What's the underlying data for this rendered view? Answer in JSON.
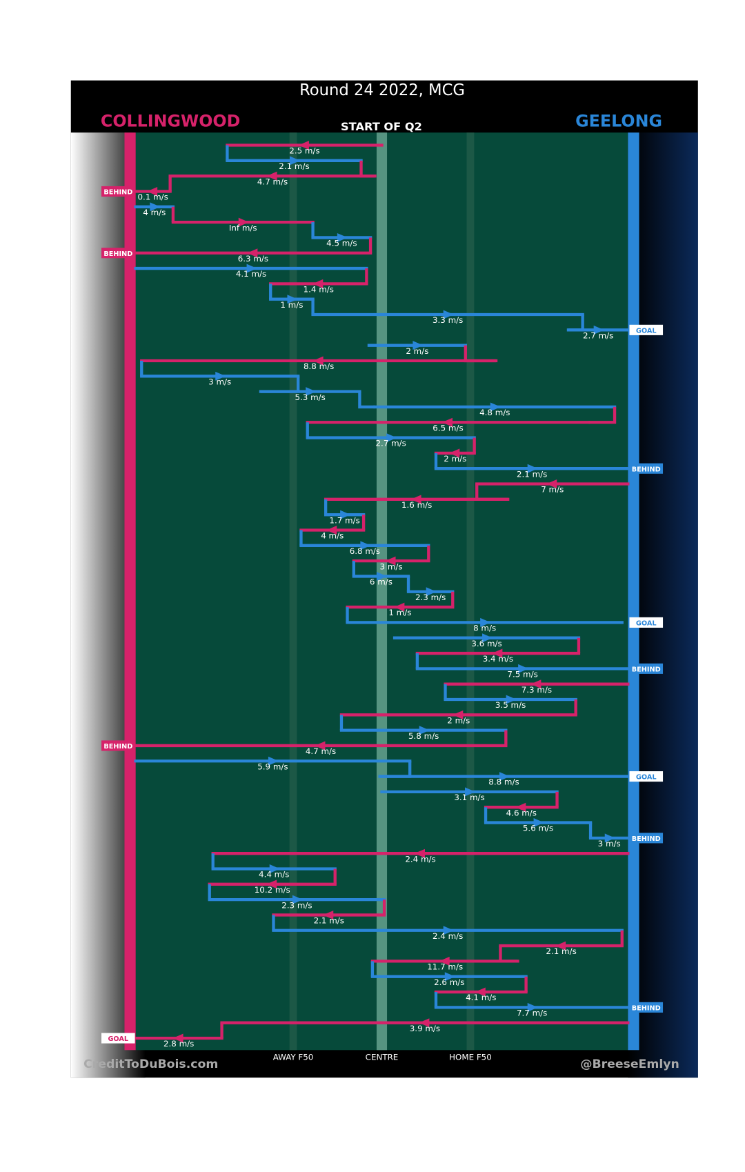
{
  "chart_data": {
    "type": "kick-chain",
    "title": "Round 24 2022, MCG",
    "subtitle": "START OF Q2",
    "credit_left": "CreditToDuBois.com",
    "credit_right": "@BreeseEmlyn",
    "teams": [
      {
        "name": "COLLINGWOOD",
        "color": "#d6226a"
      },
      {
        "name": "GEELONG",
        "color": "#2a86d8"
      }
    ],
    "xlim": [
      0,
      100
    ],
    "xticks": [
      {
        "value": 32,
        "label": "AWAY F50"
      },
      {
        "value": 50,
        "label": "CENTRE"
      },
      {
        "value": 68,
        "label": "HOME F50"
      }
    ],
    "kicks": [
      {
        "team": "COLLINGWOOD",
        "label": "2.5 m/s",
        "from": 50,
        "to": 18.6
      },
      {
        "team": "GEELONG",
        "label": "2.1 m/s",
        "from": 18.6,
        "to": 45.8
      },
      {
        "team": "COLLINGWOOD",
        "label": "4.7 m/s",
        "from": 48.6,
        "to": 7
      },
      {
        "team": "COLLINGWOOD",
        "label": "0.1 m/s",
        "from": 7,
        "to": 0,
        "result": "BEHIND"
      },
      {
        "team": "GEELONG",
        "label": "4 m/s",
        "from": 0,
        "to": 7.6
      },
      {
        "team": "COLLINGWOOD",
        "label": "Inf m/s",
        "from": 7.6,
        "to": 36
      },
      {
        "team": "GEELONG",
        "label": "4.5 m/s",
        "from": 36,
        "to": 47.7
      },
      {
        "team": "COLLINGWOOD",
        "label": "6.3 m/s",
        "from": 47.7,
        "to": 0,
        "result": "BEHIND"
      },
      {
        "team": "GEELONG",
        "label": "4.1 m/s",
        "from": 0,
        "to": 46.9
      },
      {
        "team": "COLLINGWOOD",
        "label": "1.4 m/s",
        "from": 46.9,
        "to": 27.4
      },
      {
        "team": "GEELONG",
        "label": "1 m/s",
        "from": 27.4,
        "to": 36
      },
      {
        "team": "GEELONG",
        "label": "3.3 m/s",
        "from": 36,
        "to": 90.8
      },
      {
        "team": "GEELONG",
        "label": "2.7 m/s",
        "from": 87.9,
        "to": 100,
        "result": "GOAL"
      },
      {
        "team": "GEELONG",
        "label": "2 m/s",
        "from": 47.4,
        "to": 67
      },
      {
        "team": "COLLINGWOOD",
        "label": "8.8 m/s",
        "from": 73.2,
        "to": 1.2
      },
      {
        "team": "GEELONG",
        "label": "3 m/s",
        "from": 1.2,
        "to": 33
      },
      {
        "team": "GEELONG",
        "label": "5.3 m/s",
        "from": 25.4,
        "to": 45.5
      },
      {
        "team": "GEELONG",
        "label": "4.8 m/s",
        "from": 48.6,
        "to": 97.3
      },
      {
        "team": "COLLINGWOOD",
        "label": "6.5 m/s",
        "from": 92,
        "to": 34.9
      },
      {
        "team": "GEELONG",
        "label": "2.7 m/s",
        "from": 34.9,
        "to": 68.8
      },
      {
        "team": "COLLINGWOOD",
        "label": "2 m/s",
        "from": 68.8,
        "to": 61
      },
      {
        "team": "GEELONG",
        "label": "2.1 m/s",
        "from": 61,
        "to": 100,
        "result": "BEHIND"
      },
      {
        "team": "COLLINGWOOD",
        "label": "7 m/s",
        "from": 100,
        "to": 69.3
      },
      {
        "team": "COLLINGWOOD",
        "label": "1.6 m/s",
        "from": 75.6,
        "to": 38.6
      },
      {
        "team": "GEELONG",
        "label": "1.7 m/s",
        "from": 38.6,
        "to": 46.3
      },
      {
        "team": "COLLINGWOOD",
        "label": "4 m/s",
        "from": 46.3,
        "to": 33.6
      },
      {
        "team": "GEELONG",
        "label": "6.8 m/s",
        "from": 33.6,
        "to": 59.5
      },
      {
        "team": "COLLINGWOOD",
        "label": "3 m/s",
        "from": 59.5,
        "to": 44.3
      },
      {
        "team": "GEELONG",
        "label": "6 m/s",
        "from": 44.3,
        "to": 55.4
      },
      {
        "team": "GEELONG",
        "label": "2.3 m/s",
        "from": 55.4,
        "to": 64.4
      },
      {
        "team": "COLLINGWOOD",
        "label": "1 m/s",
        "from": 64.4,
        "to": 43
      },
      {
        "team": "GEELONG",
        "label": "8 m/s",
        "from": 43,
        "to": 98.8,
        "result": "GOAL"
      },
      {
        "team": "GEELONG",
        "label": "3.6 m/s",
        "from": 52.6,
        "to": 90
      },
      {
        "team": "COLLINGWOOD",
        "label": "3.4 m/s",
        "from": 90,
        "to": 57.2
      },
      {
        "team": "GEELONG",
        "label": "7.5 m/s",
        "from": 57.2,
        "to": 100,
        "result": "BEHIND"
      },
      {
        "team": "COLLINGWOOD",
        "label": "7.3 m/s",
        "from": 100,
        "to": 62.9
      },
      {
        "team": "GEELONG",
        "label": "3.5 m/s",
        "from": 62.9,
        "to": 89.4
      },
      {
        "team": "COLLINGWOOD",
        "label": "2 m/s",
        "from": 89.4,
        "to": 41.8
      },
      {
        "team": "GEELONG",
        "label": "5.8 m/s",
        "from": 41.8,
        "to": 75.2
      },
      {
        "team": "COLLINGWOOD",
        "label": "4.7 m/s",
        "from": 75.2,
        "to": 0,
        "result": "BEHIND"
      },
      {
        "team": "GEELONG",
        "label": "5.9 m/s",
        "from": 0,
        "to": 55.7
      },
      {
        "team": "GEELONG",
        "label": "8.8 m/s",
        "from": 49.6,
        "to": 100,
        "result": "GOAL"
      },
      {
        "team": "GEELONG",
        "label": "3.1 m/s",
        "from": 50,
        "to": 85.6
      },
      {
        "team": "COLLINGWOOD",
        "label": "4.6 m/s",
        "from": 85.6,
        "to": 71.1
      },
      {
        "team": "GEELONG",
        "label": "5.6 m/s",
        "from": 71.1,
        "to": 92.4
      },
      {
        "team": "GEELONG",
        "label": "3 m/s",
        "from": 92.4,
        "to": 100,
        "result": "BEHIND"
      },
      {
        "team": "COLLINGWOOD",
        "label": "2.4 m/s",
        "from": 100,
        "to": 15.7
      },
      {
        "team": "GEELONG",
        "label": "4.4 m/s",
        "from": 15.7,
        "to": 40.5
      },
      {
        "team": "COLLINGWOOD",
        "label": "10.2 m/s",
        "from": 40.5,
        "to": 15
      },
      {
        "team": "GEELONG",
        "label": "2.3 m/s",
        "from": 15,
        "to": 50.5
      },
      {
        "team": "COLLINGWOOD",
        "label": "2.1 m/s",
        "from": 50.5,
        "to": 28
      },
      {
        "team": "GEELONG",
        "label": "2.4 m/s",
        "from": 28,
        "to": 98.8
      },
      {
        "team": "COLLINGWOOD",
        "label": "2.1 m/s",
        "from": 98.8,
        "to": 74.1
      },
      {
        "team": "COLLINGWOOD",
        "label": "11.7 m/s",
        "from": 77.6,
        "to": 48.1
      },
      {
        "team": "GEELONG",
        "label": "2.6 m/s",
        "from": 48.1,
        "to": 79.3
      },
      {
        "team": "COLLINGWOOD",
        "label": "4.1 m/s",
        "from": 79.3,
        "to": 61
      },
      {
        "team": "GEELONG",
        "label": "7.7 m/s",
        "from": 61,
        "to": 100,
        "result": "BEHIND"
      },
      {
        "team": "COLLINGWOOD",
        "label": "3.9 m/s",
        "from": 100,
        "to": 17.5
      },
      {
        "team": "COLLINGWOOD",
        "label": "2.8 m/s",
        "from": 17.5,
        "to": 0,
        "result": "GOAL"
      }
    ]
  }
}
